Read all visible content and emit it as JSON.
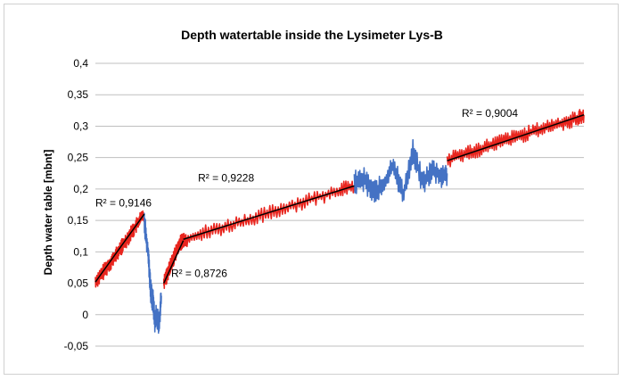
{
  "chart_data": {
    "type": "line",
    "title": "Depth watertable inside the Lysimeter Lys-B",
    "xlabel": "",
    "ylabel": "Depth water table  [mbnt]",
    "ylim": [
      -0.05,
      0.4
    ],
    "yticks": [
      -0.05,
      0,
      0.05,
      0.1,
      0.15,
      0.2,
      0.25,
      0.3,
      0.35,
      0.4
    ],
    "ytick_labels": [
      "-0,05",
      "0",
      "0,05",
      "0,1",
      "0,15",
      "0,2",
      "0,25",
      "0,3",
      "0,35",
      "0,4"
    ],
    "x_index_range": [
      0,
      100
    ],
    "grid": true,
    "colors": {
      "red_series": "#e8251e",
      "blue_series": "#4472c4",
      "trend": "#000000",
      "grid": "#bfbfbf"
    },
    "series": [
      {
        "segment": 1,
        "color": "#e8251e",
        "x": [
          0,
          1,
          2,
          3,
          4,
          5,
          6,
          7,
          8,
          9,
          10
        ],
        "y": [
          0.052,
          0.062,
          0.072,
          0.082,
          0.092,
          0.104,
          0.115,
          0.126,
          0.138,
          0.15,
          0.16
        ]
      },
      {
        "segment": 2,
        "color": "#4472c4",
        "x": [
          10,
          10.8,
          11.3,
          11.8,
          12.2,
          12.6,
          13,
          13.5
        ],
        "y": [
          0.15,
          0.1,
          0.04,
          0.02,
          -0.01,
          0.0,
          -0.02,
          0.03
        ]
      },
      {
        "segment": 3,
        "color": "#e8251e",
        "x": [
          14,
          14.5,
          15,
          15.5,
          16,
          16.5,
          17,
          17.5,
          18,
          18.5
        ],
        "y": [
          0.05,
          0.06,
          0.07,
          0.08,
          0.09,
          0.1,
          0.108,
          0.115,
          0.12,
          0.118
        ]
      },
      {
        "segment": 4,
        "color": "#e8251e",
        "x": [
          18.5,
          22,
          26,
          30,
          34,
          38,
          42,
          46,
          50,
          53
        ],
        "y": [
          0.12,
          0.13,
          0.138,
          0.148,
          0.157,
          0.168,
          0.178,
          0.188,
          0.198,
          0.205
        ]
      },
      {
        "segment": 5,
        "color": "#4472c4",
        "x": [
          53,
          55,
          57,
          59,
          61,
          63,
          65,
          67,
          69,
          71,
          72
        ],
        "y": [
          0.21,
          0.215,
          0.195,
          0.205,
          0.24,
          0.19,
          0.26,
          0.21,
          0.23,
          0.22,
          0.225
        ]
      },
      {
        "segment": 6,
        "color": "#e8251e",
        "x": [
          72,
          75,
          78,
          81,
          84,
          87,
          90,
          93,
          96,
          99,
          100
        ],
        "y": [
          0.245,
          0.255,
          0.262,
          0.27,
          0.278,
          0.285,
          0.292,
          0.3,
          0.306,
          0.314,
          0.318
        ]
      }
    ],
    "trendlines": [
      {
        "from": [
          0,
          0.052
        ],
        "to": [
          10,
          0.16
        ]
      },
      {
        "from": [
          14,
          0.05
        ],
        "to": [
          18,
          0.118
        ]
      },
      {
        "from": [
          18,
          0.12
        ],
        "to": [
          53,
          0.205
        ]
      },
      {
        "from": [
          72,
          0.245
        ],
        "to": [
          100,
          0.318
        ]
      }
    ],
    "annotations": [
      {
        "text": "R² = 0,9146",
        "x": 0,
        "y": 0.172
      },
      {
        "text": "R² = 0,8726",
        "x": 15.5,
        "y": 0.06
      },
      {
        "text": "R² = 0,9228",
        "x": 21,
        "y": 0.212
      },
      {
        "text": "R² = 0,9004",
        "x": 75,
        "y": 0.315
      }
    ]
  }
}
